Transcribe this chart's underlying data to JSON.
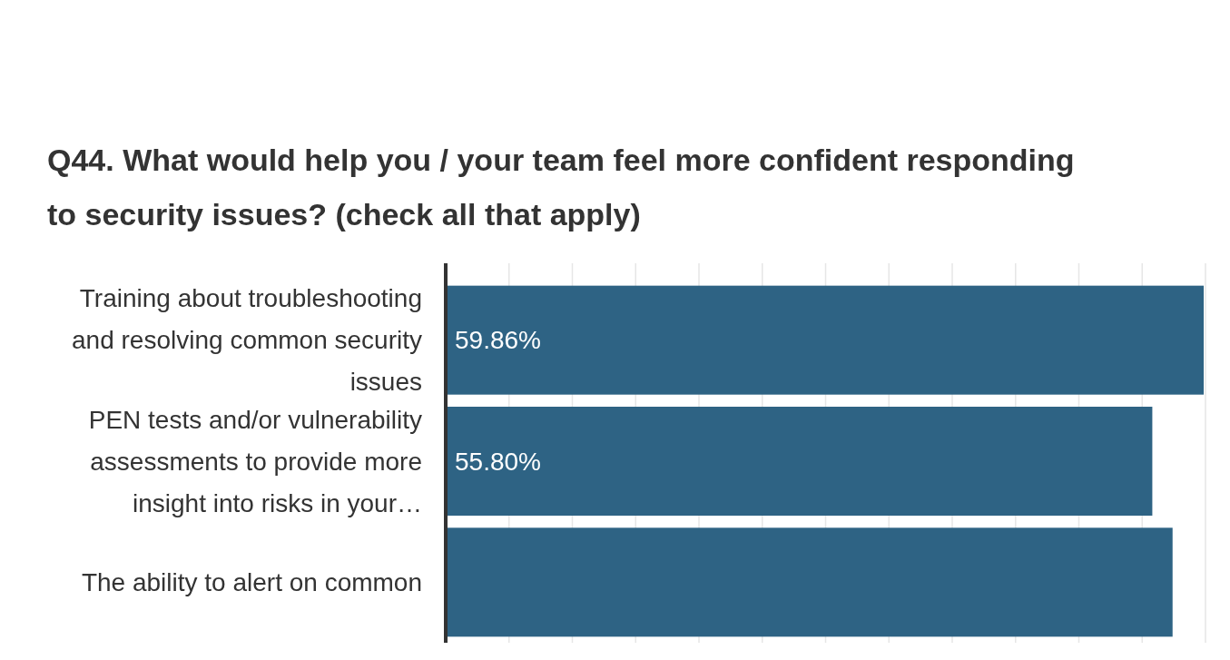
{
  "chart_data": {
    "type": "bar",
    "orientation": "horizontal",
    "title": "Q44. What would help you / your team feel more confident responding to security issues? (check all that apply)",
    "categories": [
      "Training about troubleshooting and resolving common security issues",
      "PEN tests and/or vulnerability assessments to provide more insight into risks in your…",
      "The ability to alert on common"
    ],
    "values": [
      59.86,
      55.8,
      57.4
    ],
    "value_labels": [
      "59.86%",
      "55.80%",
      null
    ],
    "color": "#2e6384",
    "xlim": [
      0,
      60
    ],
    "xticks": [
      {
        "value": 0,
        "label": null
      },
      {
        "value": 5,
        "label": null
      },
      {
        "value": 10,
        "label": null
      },
      {
        "value": 15,
        "label": null
      },
      {
        "value": 20,
        "label": null
      },
      {
        "value": 25,
        "label": null
      },
      {
        "value": 30,
        "label": null
      },
      {
        "value": 35,
        "label": null
      },
      {
        "value": 40,
        "label": null
      },
      {
        "value": 45,
        "label": null
      },
      {
        "value": 50,
        "label": null
      },
      {
        "value": 55,
        "label": null
      },
      {
        "value": 60,
        "label": null
      }
    ],
    "grid": "x",
    "tick_labels": "y"
  }
}
